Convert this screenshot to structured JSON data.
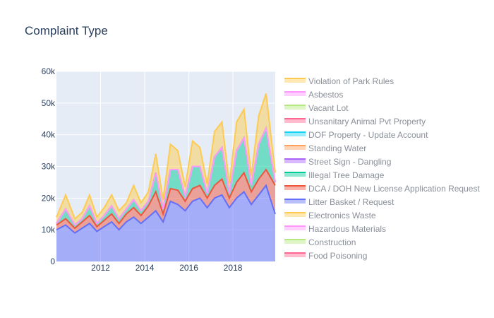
{
  "chart_data": {
    "type": "area",
    "title": "Complaint Type",
    "xlabel": "",
    "ylabel": "",
    "x_start": "2010-01",
    "x_end": "2019-12",
    "xlim": [
      "2010-01",
      "2019-12"
    ],
    "ylim": [
      0,
      60000
    ],
    "x_ticks": [
      "2012",
      "2014",
      "2016",
      "2018"
    ],
    "y_ticks": [
      0,
      10000,
      20000,
      30000,
      40000,
      50000,
      60000
    ],
    "y_tick_labels": [
      "0",
      "10k",
      "20k",
      "30k",
      "40k",
      "50k",
      "60k"
    ],
    "grid": true,
    "stacked": true,
    "legend_position": "right",
    "anchor_months": [
      "2010-01",
      "2010-06",
      "2010-11",
      "2011-03",
      "2011-07",
      "2011-11",
      "2012-03",
      "2012-07",
      "2012-11",
      "2013-03",
      "2013-07",
      "2013-11",
      "2014-03",
      "2014-07",
      "2014-11",
      "2015-03",
      "2015-07",
      "2015-11",
      "2016-03",
      "2016-07",
      "2016-11",
      "2017-03",
      "2017-07",
      "2017-11",
      "2018-03",
      "2018-07",
      "2018-11",
      "2019-03",
      "2019-07",
      "2019-12"
    ],
    "series": [
      {
        "name": "Litter Basket / Request",
        "color": "#636efa",
        "values": [
          10000,
          11500,
          9000,
          10500,
          12000,
          9500,
          11000,
          12500,
          10000,
          12500,
          14000,
          12000,
          14000,
          16000,
          12500,
          19000,
          18000,
          16000,
          19000,
          20000,
          17000,
          20000,
          21000,
          17000,
          20000,
          22000,
          18000,
          21000,
          24000,
          15000
        ]
      },
      {
        "name": "DCA / DOH New License Application Request",
        "color": "#ef553b",
        "values": [
          1500,
          2000,
          1500,
          2000,
          2500,
          1500,
          2000,
          2500,
          2000,
          2500,
          3000,
          2500,
          3500,
          6000,
          2500,
          4000,
          4500,
          3000,
          4000,
          4000,
          3000,
          4000,
          5000,
          3000,
          5000,
          6000,
          4000,
          5000,
          5000,
          9000
        ]
      },
      {
        "name": "Illegal Tree Damage",
        "color": "#00cc96",
        "values": [
          500,
          3000,
          1000,
          1000,
          3000,
          1000,
          1500,
          2500,
          1500,
          1500,
          2500,
          1500,
          1500,
          6000,
          1500,
          6000,
          6500,
          1500,
          7000,
          6000,
          1500,
          9000,
          10000,
          1500,
          10000,
          11000,
          2000,
          11000,
          13000,
          1000
        ]
      },
      {
        "name": "Street Sign - Dangling",
        "color": "#ab63fa",
        "values": [
          0,
          0,
          0,
          0,
          0,
          0,
          0,
          0,
          0,
          0,
          0,
          0,
          0,
          0,
          0,
          0,
          0,
          0,
          0,
          0,
          0,
          0,
          0,
          0,
          0,
          0,
          0,
          0,
          0,
          0
        ]
      },
      {
        "name": "Standing Water",
        "color": "#ffa15a",
        "values": [
          0,
          0,
          0,
          0,
          0,
          0,
          0,
          0,
          0,
          0,
          0,
          0,
          0,
          0,
          0,
          0,
          0,
          0,
          0,
          0,
          0,
          0,
          0,
          0,
          0,
          0,
          0,
          0,
          0,
          0
        ]
      },
      {
        "name": "DOF Property - Update Account",
        "color": "#19d3f3",
        "values": [
          0,
          0,
          0,
          0,
          0,
          0,
          0,
          0,
          0,
          0,
          0,
          0,
          0,
          0,
          0,
          0,
          0,
          0,
          0,
          0,
          0,
          0,
          0,
          0,
          0,
          0,
          0,
          0,
          0,
          0
        ]
      },
      {
        "name": "Unsanitary Animal Pvt Property",
        "color": "#ff6692",
        "values": [
          0,
          0,
          0,
          0,
          0,
          0,
          0,
          0,
          0,
          0,
          0,
          0,
          0,
          0,
          0,
          0,
          0,
          0,
          0,
          0,
          0,
          0,
          0,
          0,
          0,
          0,
          0,
          0,
          0,
          0
        ]
      },
      {
        "name": "Vacant Lot",
        "color": "#b6e880",
        "values": [
          0,
          0,
          0,
          0,
          0,
          0,
          0,
          0,
          0,
          0,
          0,
          0,
          0,
          0,
          0,
          0,
          0,
          0,
          0,
          0,
          0,
          0,
          0,
          0,
          0,
          0,
          0,
          0,
          0,
          0
        ]
      },
      {
        "name": "Asbestos",
        "color": "#ff97ff",
        "values": [
          0,
          0,
          0,
          0,
          0,
          0,
          0,
          0,
          0,
          0,
          0,
          0,
          0,
          0,
          0,
          0,
          0,
          0,
          0,
          0,
          0,
          0,
          0,
          0,
          0,
          0,
          0,
          0,
          0,
          0
        ]
      },
      {
        "name": "Violation of Park Rules",
        "color": "#fecb52",
        "values": [
          2000,
          4500,
          2000,
          2000,
          3500,
          2000,
          2500,
          3500,
          2500,
          2000,
          4500,
          2500,
          3000,
          6000,
          3000,
          8000,
          6000,
          3000,
          8000,
          6000,
          3000,
          8000,
          8000,
          3000,
          9000,
          9000,
          3000,
          9000,
          11000,
          3000
        ]
      },
      {
        "name": "Food Poisoning",
        "color": "#ff6692",
        "values": []
      },
      {
        "name": "Construction",
        "color": "#b6e880",
        "values": []
      },
      {
        "name": "Hazardous Materials",
        "color": "#ff97ff",
        "values": []
      },
      {
        "name": "Electronics Waste",
        "color": "#fecb52",
        "values": []
      }
    ],
    "legend_order": [
      "Violation of Park Rules",
      "Asbestos",
      "Vacant Lot",
      "Unsanitary Animal Pvt Property",
      "DOF Property - Update Account",
      "Standing Water",
      "Street Sign - Dangling",
      "Illegal Tree Damage",
      "DCA / DOH New License Application Request",
      "Litter Basket / Request",
      "Electronics Waste",
      "Hazardous Materials",
      "Construction",
      "Food Poisoning"
    ]
  }
}
